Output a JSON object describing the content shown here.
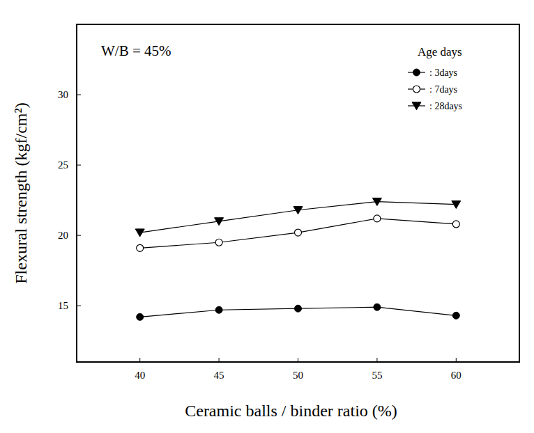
{
  "chart_data": {
    "type": "line",
    "annotation": "W/B = 45%",
    "legend_title": "Age days",
    "x_label": "Ceramic balls / binder ratio (%)",
    "y_label": "Flexural strength (kgf/cm²)",
    "x": [
      40,
      45,
      50,
      55,
      60
    ],
    "series": [
      {
        "name": ": 3days",
        "color": "#000000",
        "marker": "circle",
        "values": [
          14.2,
          14.7,
          14.8,
          14.9,
          14.3
        ]
      },
      {
        "name": ": 7days",
        "color": "#000000",
        "marker": "circle-open",
        "values": [
          19.1,
          19.5,
          20.2,
          21.2,
          20.8
        ]
      },
      {
        "name": ": 28days",
        "color": "#000000",
        "marker": "triangle-down",
        "values": [
          20.2,
          21.0,
          21.8,
          22.4,
          22.2
        ]
      }
    ],
    "xlim": [
      36,
      64
    ],
    "xticks": [
      40,
      45,
      50,
      55,
      60
    ],
    "ylim": [
      11,
      35
    ],
    "yticks": [
      15,
      20,
      25,
      30
    ],
    "grid": false,
    "legend": "upper right"
  }
}
